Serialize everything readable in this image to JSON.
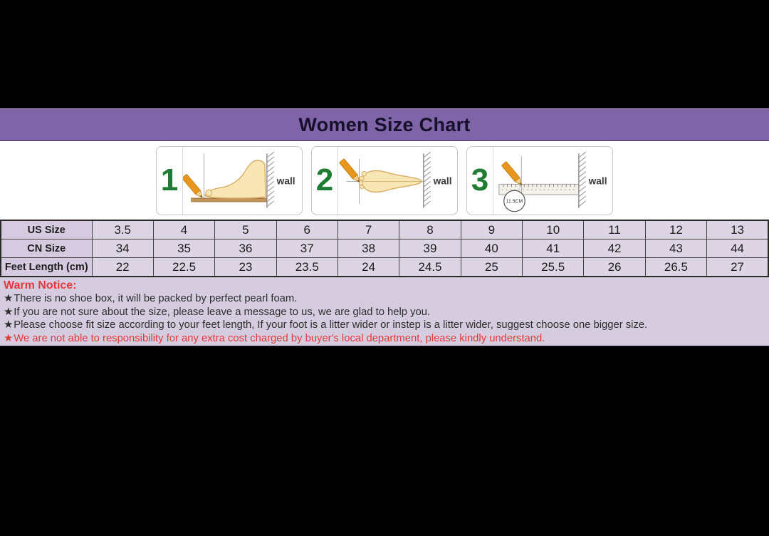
{
  "header": {
    "title": "Women Size Chart"
  },
  "steps": [
    {
      "number": "1",
      "wall_label": "wall"
    },
    {
      "number": "2",
      "wall_label": "wall"
    },
    {
      "number": "3",
      "wall_label": "wall",
      "measure_label": "11.5CM"
    }
  ],
  "chart_data": {
    "type": "table",
    "title": "Women Size Chart",
    "rows": [
      {
        "label": "US Size",
        "values": [
          "3.5",
          "4",
          "5",
          "6",
          "7",
          "8",
          "9",
          "10",
          "11",
          "12",
          "13"
        ]
      },
      {
        "label": "CN Size",
        "values": [
          "34",
          "35",
          "36",
          "37",
          "38",
          "39",
          "40",
          "41",
          "42",
          "43",
          "44"
        ]
      },
      {
        "label": "Feet Length (cm)",
        "values": [
          "22",
          "22.5",
          "23",
          "23.5",
          "24",
          "24.5",
          "25",
          "25.5",
          "26",
          "26.5",
          "27"
        ]
      }
    ]
  },
  "notice": {
    "title": "Warm Notice:",
    "items": [
      {
        "star": "★",
        "text": "There is no shoe box, it will be packed by perfect pearl foam.",
        "emphasis": "normal"
      },
      {
        "star": "★",
        "text": "If you are not sure about the size, please leave a message to us, we are glad to help you.",
        "emphasis": "normal"
      },
      {
        "star": "★",
        "text": "Please choose fit size according to your feet length, If your foot is a litter wider or instep is a litter wider, suggest choose one bigger size.",
        "emphasis": "normal"
      },
      {
        "star": "★",
        "text": "We are not able to responsibility for any extra cost charged by buyer's local department, please kindly understand.",
        "emphasis": "red"
      }
    ]
  },
  "colors": {
    "letterbox": "#000000",
    "header_purple": "#7f65a7",
    "table_label_bg": "#d5cadf",
    "table_cell_bg": "#ddd5e4",
    "notice_bg": "#d6cce0",
    "warning_red": "#e33b3b",
    "step_number_green": "#1e7d33",
    "foot_fill": "#f8e6b4",
    "pencil_orange": "#e8961e"
  }
}
